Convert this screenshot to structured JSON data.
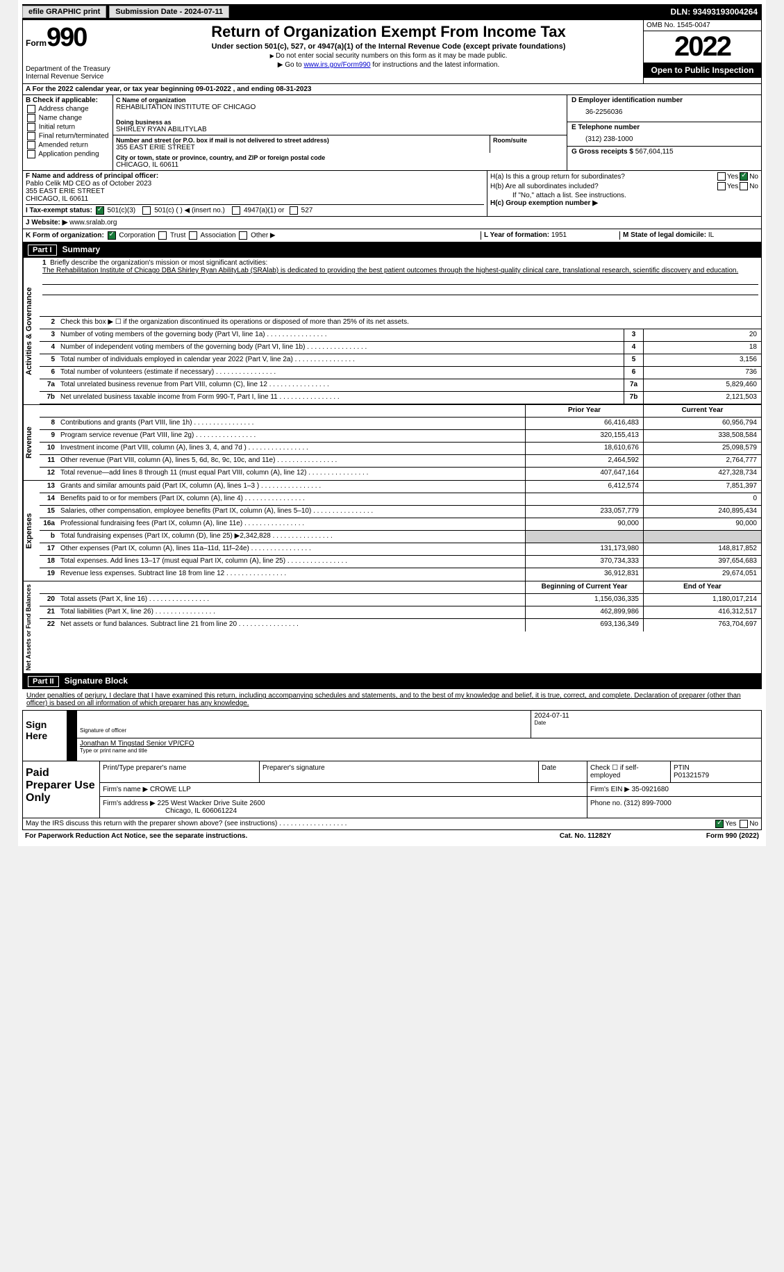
{
  "topbar": {
    "btn1": "efile GRAPHIC print",
    "btn2": "Submission Date - 2024-07-11",
    "dln_label": "DLN:",
    "dln": "93493193004264"
  },
  "header": {
    "form_word": "Form",
    "form_num": "990",
    "title": "Return of Organization Exempt From Income Tax",
    "sub": "Under section 501(c), 527, or 4947(a)(1) of the Internal Revenue Code (except private foundations)",
    "note1": "Do not enter social security numbers on this form as it may be made public.",
    "note2_pre": "Go to ",
    "note2_link": "www.irs.gov/Form990",
    "note2_post": " for instructions and the latest information.",
    "dept": "Department of the Treasury\nInternal Revenue Service",
    "omb": "OMB No. 1545-0047",
    "year": "2022",
    "inspection": "Open to Public Inspection"
  },
  "rowA": "A For the 2022 calendar year, or tax year beginning 09-01-2022  , and ending 08-31-2023",
  "colB": {
    "label": "B Check if applicable:",
    "opts": [
      "Address change",
      "Name change",
      "Initial return",
      "Final return/terminated",
      "Amended return",
      "Application pending"
    ]
  },
  "colC": {
    "name_lbl": "C Name of organization",
    "name": "REHABILITATION INSTITUTE OF CHICAGO",
    "dba_lbl": "Doing business as",
    "dba": "SHIRLEY RYAN ABILITYLAB",
    "addr_lbl": "Number and street (or P.O. box if mail is not delivered to street address)",
    "addr": "355 EAST ERIE STREET",
    "room_lbl": "Room/suite",
    "city_lbl": "City or town, state or province, country, and ZIP or foreign postal code",
    "city": "CHICAGO, IL  60611"
  },
  "colD": {
    "ein_lbl": "D Employer identification number",
    "ein": "36-2256036",
    "tel_lbl": "E Telephone number",
    "tel": "(312) 238-1000",
    "gross_lbl": "G Gross receipts $",
    "gross": "567,604,115"
  },
  "sectionFH": {
    "f_lbl": "F Name and address of principal officer:",
    "f_name": "Pablo Celik MD CEO as of October 2023",
    "f_addr1": "355 EAST ERIE STREET",
    "f_addr2": "CHICAGO, IL  60611",
    "ha_lbl": "H(a)  Is this a group return for subordinates?",
    "hb_lbl": "H(b)  Are all subordinates included?",
    "hb_note": "If \"No,\" attach a list. See instructions.",
    "hc_lbl": "H(c)  Group exemption number ▶",
    "yes": "Yes",
    "no": "No"
  },
  "rowI": {
    "lbl": "I  Tax-exempt status:",
    "opt1": "501(c)(3)",
    "opt2": "501(c) (  ) ◀ (insert no.)",
    "opt3": "4947(a)(1) or",
    "opt4": "527"
  },
  "rowJ": {
    "lbl": "J  Website: ▶",
    "val": "www.sralab.org"
  },
  "rowK": {
    "lbl": "K Form of organization:",
    "opts": [
      "Corporation",
      "Trust",
      "Association",
      "Other ▶"
    ],
    "l_lbl": "L Year of formation:",
    "l_val": "1951",
    "m_lbl": "M State of legal domicile:",
    "m_val": "IL"
  },
  "part1": {
    "title": "Part I",
    "heading": "Summary",
    "line1_lbl": "Briefly describe the organization's mission or most significant activities:",
    "line1_text": "The Rehabilitation Institute of Chicago DBA Shirley Ryan AbilityLab (SRAlab) is dedicated to providing the best patient outcomes through the highest-quality clinical care, translational research, scientific discovery and education.",
    "line2": "Check this box ▶ ☐  if the organization discontinued its operations or disposed of more than 25% of its net assets.",
    "sides": {
      "ag": "Activities & Governance",
      "rev": "Revenue",
      "exp": "Expenses",
      "net": "Net Assets or Fund Balances"
    },
    "cols": {
      "prior": "Prior Year",
      "current": "Current Year",
      "begin": "Beginning of Current Year",
      "end": "End of Year"
    },
    "lines_single": [
      {
        "n": "3",
        "d": "Number of voting members of the governing body (Part VI, line 1a)",
        "v": "20"
      },
      {
        "n": "4",
        "d": "Number of independent voting members of the governing body (Part VI, line 1b)",
        "v": "18"
      },
      {
        "n": "5",
        "d": "Total number of individuals employed in calendar year 2022 (Part V, line 2a)",
        "v": "3,156"
      },
      {
        "n": "6",
        "d": "Total number of volunteers (estimate if necessary)",
        "v": "736"
      },
      {
        "n": "7a",
        "d": "Total unrelated business revenue from Part VIII, column (C), line 12",
        "v": "5,829,460"
      },
      {
        "n": "7b",
        "d": "Net unrelated business taxable income from Form 990-T, Part I, line 11",
        "v": "2,121,503"
      }
    ],
    "lines_rev": [
      {
        "n": "8",
        "d": "Contributions and grants (Part VIII, line 1h)",
        "p": "66,416,483",
        "c": "60,956,794"
      },
      {
        "n": "9",
        "d": "Program service revenue (Part VIII, line 2g)",
        "p": "320,155,413",
        "c": "338,508,584"
      },
      {
        "n": "10",
        "d": "Investment income (Part VIII, column (A), lines 3, 4, and 7d )",
        "p": "18,610,676",
        "c": "25,098,579"
      },
      {
        "n": "11",
        "d": "Other revenue (Part VIII, column (A), lines 5, 6d, 8c, 9c, 10c, and 11e)",
        "p": "2,464,592",
        "c": "2,764,777"
      },
      {
        "n": "12",
        "d": "Total revenue—add lines 8 through 11 (must equal Part VIII, column (A), line 12)",
        "p": "407,647,164",
        "c": "427,328,734"
      }
    ],
    "lines_exp": [
      {
        "n": "13",
        "d": "Grants and similar amounts paid (Part IX, column (A), lines 1–3 )",
        "p": "6,412,574",
        "c": "7,851,397"
      },
      {
        "n": "14",
        "d": "Benefits paid to or for members (Part IX, column (A), line 4)",
        "p": "",
        "c": "0"
      },
      {
        "n": "15",
        "d": "Salaries, other compensation, employee benefits (Part IX, column (A), lines 5–10)",
        "p": "233,057,779",
        "c": "240,895,434"
      },
      {
        "n": "16a",
        "d": "Professional fundraising fees (Part IX, column (A), line 11e)",
        "p": "90,000",
        "c": "90,000"
      },
      {
        "n": "b",
        "d": "Total fundraising expenses (Part IX, column (D), line 25) ▶2,342,828",
        "p": "grey",
        "c": "grey"
      },
      {
        "n": "17",
        "d": "Other expenses (Part IX, column (A), lines 11a–11d, 11f–24e)",
        "p": "131,173,980",
        "c": "148,817,852"
      },
      {
        "n": "18",
        "d": "Total expenses. Add lines 13–17 (must equal Part IX, column (A), line 25)",
        "p": "370,734,333",
        "c": "397,654,683"
      },
      {
        "n": "19",
        "d": "Revenue less expenses. Subtract line 18 from line 12",
        "p": "36,912,831",
        "c": "29,674,051"
      }
    ],
    "lines_net": [
      {
        "n": "20",
        "d": "Total assets (Part X, line 16)",
        "p": "1,156,036,335",
        "c": "1,180,017,214"
      },
      {
        "n": "21",
        "d": "Total liabilities (Part X, line 26)",
        "p": "462,899,986",
        "c": "416,312,517"
      },
      {
        "n": "22",
        "d": "Net assets or fund balances. Subtract line 21 from line 20",
        "p": "693,136,349",
        "c": "763,704,697"
      }
    ]
  },
  "part2": {
    "title": "Part II",
    "heading": "Signature Block",
    "decl": "Under penalties of perjury, I declare that I have examined this return, including accompanying schedules and statements, and to the best of my knowledge and belief, it is true, correct, and complete. Declaration of preparer (other than officer) is based on all information of which preparer has any knowledge.",
    "sign_here": "Sign Here",
    "sig_officer_lbl": "Signature of officer",
    "sig_date": "2024-07-11",
    "date_lbl": "Date",
    "officer_name": "Jonathan M Tingstad  Senior VP/CFO",
    "officer_name_lbl": "Type or print name and title",
    "paid": "Paid Preparer Use Only",
    "prep_name_lbl": "Print/Type preparer's name",
    "prep_sig_lbl": "Preparer's signature",
    "check_lbl": "Check ☐ if self-employed",
    "ptin_lbl": "PTIN",
    "ptin": "P01321579",
    "firm_name_lbl": "Firm's name  ▶",
    "firm_name": "CROWE LLP",
    "firm_ein_lbl": "Firm's EIN ▶",
    "firm_ein": "35-0921680",
    "firm_addr_lbl": "Firm's address ▶",
    "firm_addr1": "225 West Wacker Drive Suite 2600",
    "firm_addr2": "Chicago, IL  606061224",
    "phone_lbl": "Phone no.",
    "phone": "(312) 899-7000"
  },
  "footer": {
    "discuss": "May the IRS discuss this return with the preparer shown above? (see instructions)",
    "yes": "Yes",
    "no": "No",
    "notice": "For Paperwork Reduction Act Notice, see the separate instructions.",
    "cat": "Cat. No. 11282Y",
    "formline": "Form 990 (2022)"
  }
}
